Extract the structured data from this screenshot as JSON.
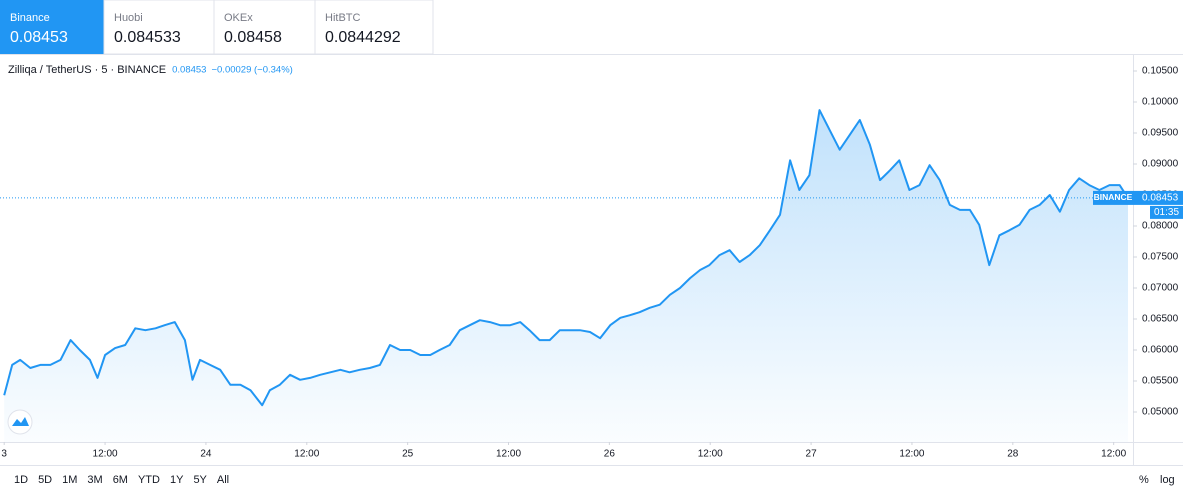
{
  "tabs": [
    {
      "name": "Binance",
      "price": "0.08453"
    },
    {
      "name": "Huobi",
      "price": "0.084533"
    },
    {
      "name": "OKEx",
      "price": "0.08458"
    },
    {
      "name": "HitBTC",
      "price": "0.0844292"
    }
  ],
  "chart_data": {
    "type": "area",
    "title": "Zilliqa / TetherUS · 5 · BINANCE",
    "quote": {
      "last": "0.08453",
      "change": "−0.00029 (−0.34%)"
    },
    "color": "#2196f3",
    "grid": false,
    "current_price": 0.08453,
    "price_tag": "BINANCE",
    "countdown": "01:35",
    "x": [
      0,
      0.95,
      1.9,
      3.1,
      4.3,
      5.5,
      6.7,
      7.9,
      9.0,
      10.2,
      11.1,
      12.0,
      13.2,
      14.4,
      15.6,
      16.8,
      18.0,
      19.1,
      20.3,
      21.5,
      22.4,
      23.3,
      24.5,
      25.7,
      26.9,
      28.1,
      29.3,
      30.7,
      31.6,
      32.8,
      34.0,
      35.2,
      36.4,
      37.6,
      38.8,
      40.0,
      41.1,
      42.3,
      43.5,
      44.7,
      45.9,
      47.1,
      48.3,
      49.5,
      50.7,
      51.8,
      53.0,
      54.2,
      55.4,
      56.6,
      57.8,
      59.0,
      60.2,
      61.4,
      62.5,
      63.7,
      64.9,
      66.1,
      67.3,
      68.5,
      69.7,
      70.9,
      72.1,
      73.3,
      74.4,
      75.6,
      76.8,
      78.0,
      79.2,
      80.4,
      81.6,
      82.8,
      83.9,
      85.1,
      86.3,
      87.5,
      88.7,
      89.9,
      91.1,
      92.3,
      93.5,
      94.6,
      95.8,
      97.0,
      98.2,
      99.4,
      100.6,
      101.8,
      103.0,
      104.2,
      105.4,
      106.5,
      107.7,
      108.9,
      110.1,
      111.3,
      112.5,
      113.7,
      114.9,
      116.0,
      117.2,
      118.4,
      119.6,
      120.8,
      122.0,
      123.2,
      124.4,
      125.6,
      126.7,
      127.9,
      129.1,
      130.3,
      131.5,
      132.7,
      133.7
    ],
    "values": [
      0.0527,
      0.0576,
      0.0584,
      0.0571,
      0.0576,
      0.0576,
      0.0584,
      0.0616,
      0.06,
      0.0584,
      0.0555,
      0.0592,
      0.0603,
      0.0608,
      0.0635,
      0.0632,
      0.0635,
      0.064,
      0.0645,
      0.0616,
      0.0552,
      0.0584,
      0.0576,
      0.0568,
      0.0544,
      0.0544,
      0.0535,
      0.0511,
      0.0535,
      0.0544,
      0.056,
      0.0552,
      0.0555,
      0.056,
      0.0564,
      0.0568,
      0.0564,
      0.0568,
      0.0571,
      0.0576,
      0.0608,
      0.06,
      0.06,
      0.0592,
      0.0592,
      0.06,
      0.0608,
      0.0632,
      0.064,
      0.0648,
      0.0645,
      0.064,
      0.064,
      0.0645,
      0.0632,
      0.0616,
      0.0616,
      0.0632,
      0.0632,
      0.0632,
      0.0629,
      0.0619,
      0.064,
      0.0652,
      0.0656,
      0.0661,
      0.0668,
      0.0673,
      0.0689,
      0.07,
      0.0716,
      0.0729,
      0.0737,
      0.0753,
      0.0761,
      0.0742,
      0.0753,
      0.0769,
      0.0793,
      0.0818,
      0.0906,
      0.0858,
      0.0882,
      0.0987,
      0.0955,
      0.0923,
      0.0947,
      0.0971,
      0.0931,
      0.0874,
      0.089,
      0.0906,
      0.0858,
      0.0866,
      0.0898,
      0.0874,
      0.0834,
      0.0826,
      0.0826,
      0.0802,
      0.0737,
      0.0785,
      0.0793,
      0.0802,
      0.0826,
      0.0834,
      0.085,
      0.0823,
      0.0858,
      0.0877,
      0.0866,
      0.0858,
      0.0866,
      0.0866,
      0.0845
    ],
    "xlim": [
      -0.5,
      134.3
    ],
    "xticks": [
      {
        "value": 0,
        "label": "3"
      },
      {
        "value": 12,
        "label": "12:00"
      },
      {
        "value": 24,
        "label": "24"
      },
      {
        "value": 36,
        "label": "12:00"
      },
      {
        "value": 48,
        "label": "25"
      },
      {
        "value": 60,
        "label": "12:00"
      },
      {
        "value": 72,
        "label": "26"
      },
      {
        "value": 84,
        "label": "12:00"
      },
      {
        "value": 96,
        "label": "27"
      },
      {
        "value": 108,
        "label": "12:00"
      },
      {
        "value": 120,
        "label": "28"
      },
      {
        "value": 132,
        "label": "12:00"
      }
    ],
    "ylim": [
      0.04516,
      0.10758
    ],
    "yticks": [
      {
        "value": 0.05,
        "label": "0.05000"
      },
      {
        "value": 0.055,
        "label": "0.05500"
      },
      {
        "value": 0.06,
        "label": "0.06000"
      },
      {
        "value": 0.065,
        "label": "0.06500"
      },
      {
        "value": 0.07,
        "label": "0.07000"
      },
      {
        "value": 0.075,
        "label": "0.07500"
      },
      {
        "value": 0.08,
        "label": "0.08000"
      },
      {
        "value": 0.085,
        "label": "0.08500"
      },
      {
        "value": 0.09,
        "label": "0.09000"
      },
      {
        "value": 0.095,
        "label": "0.09500"
      },
      {
        "value": 0.1,
        "label": "0.10000"
      },
      {
        "value": 0.105,
        "label": "0.10500"
      }
    ]
  },
  "toolbar": {
    "ranges": [
      "1D",
      "5D",
      "1M",
      "3M",
      "6M",
      "YTD",
      "1Y",
      "5Y",
      "All"
    ],
    "percent": "%",
    "log": "log"
  }
}
